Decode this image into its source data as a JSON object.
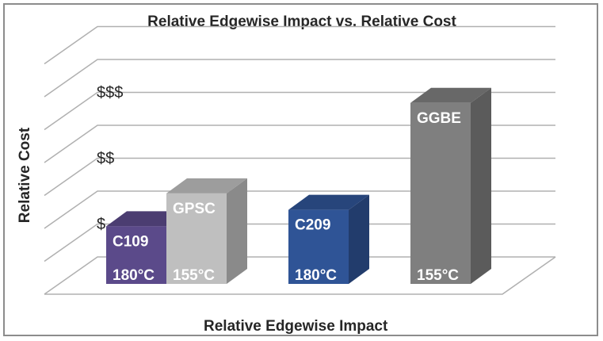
{
  "chart_data": {
    "type": "bar",
    "title": "Relative Edgewise Impact vs. Relative Cost",
    "xlabel": "Relative Edgewise Impact",
    "ylabel": "Relative Cost",
    "y_tick_labels": [
      "$",
      "$$",
      "$$$"
    ],
    "ylim": [
      0,
      7
    ],
    "grid": true,
    "legend": "none",
    "categories": [
      "C109",
      "GPSC",
      "C209",
      "GGBE"
    ],
    "series": [
      {
        "values": [
          1.75,
          2.75,
          2.25,
          5.5
        ],
        "temperatures": [
          "180°C",
          "155°C",
          "180°C",
          "155°C"
        ],
        "colors": [
          "#5b4a8a",
          "#bfbfbf",
          "#2f5496",
          "#7f7f7f"
        ]
      }
    ]
  }
}
